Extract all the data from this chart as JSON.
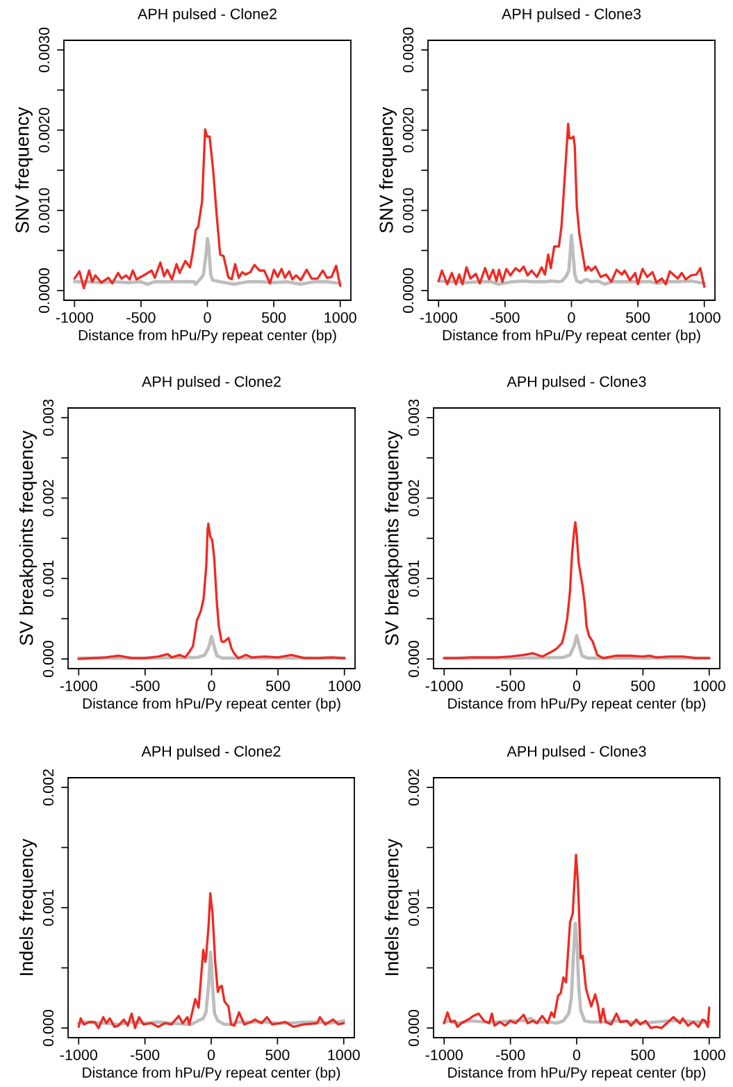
{
  "chart_data": [
    {
      "type": "line",
      "title": "APH pulsed - Clone2",
      "xlabel": "Distance from hPu/Py repeat center (bp)",
      "ylabel": "SNV frequency",
      "xlim": [
        -1080,
        1080
      ],
      "xticks": [
        -1000,
        -500,
        0,
        500,
        1000
      ],
      "ylim": [
        -0.00012,
        0.00312
      ],
      "yticks": [
        {
          "value": 0,
          "label": "0.0000"
        },
        {
          "value": 0.0005,
          "label": null
        },
        {
          "value": 0.001,
          "label": "0.0010"
        },
        {
          "value": 0.0015,
          "label": null
        },
        {
          "value": 0.002,
          "label": "0.0020"
        },
        {
          "value": 0.0025,
          "label": null
        },
        {
          "value": 0.003,
          "label": "0.0030"
        }
      ],
      "series": [
        {
          "color": "#bdbdbd",
          "x": [
            -1000,
            -900,
            -800,
            -700,
            -600,
            -500,
            -450,
            -400,
            -300,
            -200,
            -100,
            -90,
            -50,
            -30,
            -10,
            0,
            10,
            25,
            40,
            100,
            200,
            300,
            400,
            500,
            600,
            700,
            800,
            900,
            1000
          ],
          "values": [
            0.00011,
            0.00011,
            0.0001,
            0.00011,
            0.0001,
            0.00011,
            8e-05,
            0.00011,
            0.00011,
            0.00011,
            0.00011,
            8e-05,
            0.00015,
            0.0002,
            0.00045,
            0.00065,
            0.00055,
            0.0002,
            0.00013,
            0.00011,
            8e-05,
            0.00011,
            0.00011,
            0.0001,
            0.00011,
            8e-05,
            0.00011,
            0.00011,
            9e-05
          ]
        },
        {
          "color": "#ee2a24",
          "x": [
            -1000,
            -963,
            -930,
            -890,
            -867,
            -843,
            -798,
            -745,
            -716,
            -672,
            -646,
            -611,
            -585,
            -562,
            -533,
            -480,
            -419,
            -396,
            -354,
            -326,
            -302,
            -267,
            -232,
            -209,
            -166,
            -131,
            -110,
            -87,
            -70,
            -40,
            -17,
            -3,
            17,
            44,
            70,
            96,
            122,
            157,
            183,
            209,
            236,
            262,
            288,
            323,
            354,
            393,
            428,
            471,
            501,
            529,
            558,
            584,
            616,
            640,
            668,
            703,
            747,
            785,
            829,
            869,
            899,
            934,
            969,
            1000
          ],
          "values": [
            0.00015,
            0.00024,
            3e-05,
            0.00025,
            0.00011,
            0.00019,
            0.0001,
            0.00016,
            9e-05,
            0.00022,
            0.00015,
            0.00019,
            0.00014,
            0.00025,
            0.00014,
            0.00019,
            0.00025,
            0.00016,
            0.00035,
            0.00018,
            0.00026,
            0.00014,
            0.00033,
            0.00022,
            0.00037,
            0.00029,
            0.00048,
            0.00076,
            0.00079,
            0.00111,
            0.00201,
            0.00192,
            0.00192,
            0.00149,
            0.00094,
            0.00045,
            0.00043,
            0.00017,
            0.00014,
            0.00033,
            0.00016,
            0.00023,
            0.0002,
            0.00023,
            0.00032,
            0.00025,
            0.00025,
            9e-05,
            0.00026,
            0.00017,
            0.00027,
            0.00016,
            0.00024,
            0.00014,
            0.00019,
            0.00013,
            0.00026,
            0.00015,
            0.00015,
            0.00025,
            0.00016,
            0.00017,
            0.00031,
            6e-05
          ]
        }
      ]
    },
    {
      "type": "line",
      "title": "APH pulsed - Clone3",
      "xlabel": "Distance from hPu/Py repeat center (bp)",
      "ylabel": "SNV frequency",
      "xlim": [
        -1080,
        1080
      ],
      "xticks": [
        -1000,
        -500,
        0,
        500,
        1000
      ],
      "ylim": [
        -0.00012,
        0.00312
      ],
      "yticks": [
        {
          "value": 0,
          "label": "0.0000"
        },
        {
          "value": 0.0005,
          "label": null
        },
        {
          "value": 0.001,
          "label": "0.0010"
        },
        {
          "value": 0.0015,
          "label": null
        },
        {
          "value": 0.002,
          "label": "0.0020"
        },
        {
          "value": 0.0025,
          "label": null
        },
        {
          "value": 0.003,
          "label": "0.0030"
        }
      ],
      "series": [
        {
          "color": "#bdbdbd",
          "x": [
            -1000,
            -900,
            -800,
            -700,
            -600,
            -550,
            -450,
            -350,
            -300,
            -200,
            -150,
            -100,
            -70,
            -40,
            -20,
            -8,
            0,
            10,
            25,
            40,
            70,
            110,
            150,
            200,
            250,
            300,
            400,
            500,
            600,
            650,
            700,
            800,
            900,
            1000
          ],
          "values": [
            0.00012,
            0.00011,
            0.0001,
            0.00011,
            0.00011,
            8e-05,
            0.00011,
            0.00012,
            0.00011,
            0.00011,
            0.00012,
            0.00011,
            0.00012,
            0.00018,
            0.00025,
            0.0005,
            0.00069,
            0.0005,
            0.0002,
            0.00012,
            0.0001,
            0.00014,
            0.00011,
            0.00012,
            8e-05,
            0.00011,
            0.00011,
            0.00011,
            0.00011,
            9e-05,
            0.00011,
            0.00011,
            0.00012,
            9e-05
          ]
        },
        {
          "color": "#ee2a24",
          "x": [
            -1000,
            -975,
            -935,
            -900,
            -870,
            -845,
            -820,
            -790,
            -760,
            -720,
            -690,
            -650,
            -620,
            -590,
            -565,
            -545,
            -520,
            -490,
            -460,
            -420,
            -390,
            -360,
            -330,
            -300,
            -260,
            -225,
            -200,
            -175,
            -155,
            -130,
            -95,
            -75,
            -55,
            -25,
            -15,
            0,
            15,
            25,
            40,
            60,
            80,
            105,
            125,
            150,
            180,
            220,
            260,
            300,
            340,
            380,
            400,
            440,
            480,
            500,
            535,
            570,
            610,
            640,
            680,
            710,
            740,
            800,
            830,
            860,
            900,
            940,
            970,
            1000
          ],
          "values": [
            0.00012,
            0.00025,
            8e-05,
            0.00022,
            8e-05,
            0.0002,
            8e-05,
            0.00029,
            0.00015,
            0.00021,
            9e-05,
            0.00028,
            0.00014,
            0.00026,
            0.00012,
            0.00026,
            0.00011,
            0.00027,
            0.00019,
            0.00028,
            0.00024,
            0.0003,
            0.00019,
            0.00025,
            0.00017,
            0.00029,
            0.0002,
            0.00045,
            0.00028,
            0.00055,
            0.00055,
            0.0008,
            0.0013,
            0.00208,
            0.0019,
            0.0019,
            0.00192,
            0.0018,
            0.00105,
            0.0007,
            0.0005,
            0.00025,
            0.0003,
            0.00025,
            0.0003,
            0.00017,
            0.0002,
            0.00011,
            0.00026,
            0.0002,
            0.00025,
            0.00013,
            0.00022,
            8e-05,
            0.00027,
            0.00017,
            0.00023,
            0.0001,
            0.00015,
            8e-05,
            0.00024,
            0.00015,
            0.00022,
            0.00014,
            0.00019,
            0.0002,
            0.00028,
            5e-05
          ]
        }
      ]
    },
    {
      "type": "line",
      "title": "APH pulsed - Clone2",
      "xlabel": "Distance from hPu/Py repeat center (bp)",
      "ylabel": "SV breakpoints frequency",
      "xlim": [
        -1080,
        1080
      ],
      "xticks": [
        -1000,
        -500,
        0,
        500,
        1000
      ],
      "ylim": [
        -0.00012,
        0.00312
      ],
      "yticks": [
        {
          "value": 0,
          "label": "0.000"
        },
        {
          "value": 0.0005,
          "label": null
        },
        {
          "value": 0.001,
          "label": "0.001"
        },
        {
          "value": 0.0015,
          "label": null
        },
        {
          "value": 0.002,
          "label": "0.002"
        },
        {
          "value": 0.0025,
          "label": null
        },
        {
          "value": 0.003,
          "label": "0.003"
        }
      ],
      "series": [
        {
          "color": "#bdbdbd",
          "x": [
            -1000,
            -500,
            -100,
            -50,
            -20,
            0,
            20,
            40,
            80,
            500,
            1000
          ],
          "values": [
            1e-05,
            1e-05,
            2e-05,
            5e-05,
            0.00015,
            0.00028,
            0.00015,
            4e-05,
            1e-05,
            1e-05,
            1e-05
          ]
        },
        {
          "color": "#ee2a24",
          "x": [
            -1000,
            -900,
            -800,
            -700,
            -600,
            -500,
            -400,
            -330,
            -300,
            -240,
            -200,
            -170,
            -140,
            -110,
            -80,
            -60,
            -40,
            -30,
            -24,
            -10,
            5,
            20,
            40,
            55,
            75,
            93,
            128,
            150,
            170,
            200,
            260,
            300,
            400,
            500,
            600,
            700,
            800,
            900,
            1000
          ],
          "values": [
            0,
            1e-05,
            2e-05,
            4e-05,
            1e-05,
            1e-05,
            3e-05,
            6e-05,
            2e-05,
            5e-05,
            2e-05,
            8e-05,
            0.00016,
            0.00048,
            0.0006,
            0.00075,
            0.00115,
            0.0016,
            0.00168,
            0.00152,
            0.00148,
            0.00125,
            0.0007,
            0.0004,
            0.00022,
            0.00021,
            0.00026,
            0.00013,
            7e-05,
            1e-05,
            5e-05,
            2e-05,
            3e-05,
            2e-05,
            5e-05,
            1e-05,
            1e-05,
            2e-05,
            1e-05
          ]
        }
      ]
    },
    {
      "type": "line",
      "title": "APH pulsed - Clone3",
      "xlabel": "Distance from hPu/Py repeat center (bp)",
      "ylabel": "SV breakpoints frequency",
      "xlim": [
        -1080,
        1080
      ],
      "xticks": [
        -1000,
        -500,
        0,
        500,
        1000
      ],
      "ylim": [
        -0.00012,
        0.00312
      ],
      "yticks": [
        {
          "value": 0,
          "label": "0.000"
        },
        {
          "value": 0.0005,
          "label": null
        },
        {
          "value": 0.001,
          "label": "0.001"
        },
        {
          "value": 0.0015,
          "label": null
        },
        {
          "value": 0.002,
          "label": "0.002"
        },
        {
          "value": 0.0025,
          "label": null
        },
        {
          "value": 0.003,
          "label": "0.003"
        }
      ],
      "series": [
        {
          "color": "#bdbdbd",
          "x": [
            -1000,
            -500,
            -100,
            -50,
            -20,
            0,
            20,
            40,
            80,
            500,
            1000
          ],
          "values": [
            1e-05,
            1e-05,
            2e-05,
            5e-05,
            0.00016,
            0.00029,
            0.00016,
            4e-05,
            1e-05,
            1e-05,
            1e-05
          ]
        },
        {
          "color": "#ee2a24",
          "x": [
            -1000,
            -900,
            -800,
            -700,
            -600,
            -500,
            -400,
            -330,
            -260,
            -200,
            -150,
            -110,
            -90,
            -70,
            -50,
            -35,
            -20,
            -10,
            0,
            15,
            30,
            45,
            60,
            75,
            95,
            120,
            155,
            200,
            300,
            400,
            500,
            550,
            600,
            700,
            800,
            900,
            1000
          ],
          "values": [
            1e-05,
            1e-05,
            2e-05,
            2e-05,
            2e-05,
            3e-05,
            5e-05,
            7e-05,
            3e-05,
            8e-05,
            0.00013,
            0.0002,
            0.00033,
            0.00052,
            0.00085,
            0.0013,
            0.00158,
            0.0017,
            0.00155,
            0.0012,
            0.00105,
            0.0009,
            0.0007,
            0.0004,
            0.00028,
            0.00022,
            5e-05,
            1e-05,
            4e-05,
            4e-05,
            3e-05,
            4e-05,
            2e-05,
            3e-05,
            3e-05,
            1e-05,
            1e-05
          ]
        }
      ]
    },
    {
      "type": "line",
      "title": "APH pulsed - Clone2",
      "xlabel": "Distance from hPu/Py repeat center (bp)",
      "ylabel": "Indels frequency",
      "xlim": [
        -1080,
        1080
      ],
      "xticks": [
        -1000,
        -500,
        0,
        500,
        1000
      ],
      "ylim": [
        -8e-05,
        0.00208
      ],
      "yticks": [
        {
          "value": 0,
          "label": "0.000"
        },
        {
          "value": 0.0005,
          "label": null
        },
        {
          "value": 0.001,
          "label": "0.001"
        },
        {
          "value": 0.0015,
          "label": null
        },
        {
          "value": 0.002,
          "label": "0.002"
        }
      ],
      "series": [
        {
          "color": "#bdbdbd",
          "x": [
            -1000,
            -950,
            -800,
            -700,
            -600,
            -500,
            -400,
            -300,
            -150,
            -100,
            -60,
            -40,
            -20,
            -5,
            10,
            25,
            50,
            100,
            150,
            200,
            300,
            400,
            500,
            600,
            700,
            800,
            900,
            1000
          ],
          "values": [
            4e-05,
            5e-05,
            4e-05,
            3e-05,
            5e-05,
            4e-05,
            5e-05,
            4e-05,
            3e-05,
            6e-05,
            8e-05,
            0.00013,
            0.00035,
            0.00063,
            0.00035,
            0.00012,
            6e-05,
            3e-05,
            3e-05,
            5e-05,
            5e-05,
            5e-05,
            4e-05,
            4e-05,
            5e-05,
            5e-05,
            4e-05,
            6e-05
          ]
        },
        {
          "color": "#ee2a24",
          "x": [
            -1000,
            -985,
            -960,
            -920,
            -880,
            -850,
            -815,
            -790,
            -765,
            -730,
            -700,
            -660,
            -630,
            -600,
            -575,
            -545,
            -510,
            -450,
            -400,
            -350,
            -300,
            -245,
            -215,
            -180,
            -165,
            -120,
            -95,
            -60,
            -45,
            -38,
            -20,
            -7,
            10,
            30,
            50,
            65,
            80,
            100,
            130,
            150,
            175,
            210,
            250,
            300,
            330,
            380,
            420,
            460,
            520,
            560,
            620,
            700,
            800,
            820,
            860,
            920,
            960,
            1000
          ],
          "values": [
            1e-05,
            8e-05,
            3e-05,
            5e-05,
            5e-05,
            0,
            9e-05,
            4e-05,
            8e-05,
            1e-05,
            2e-05,
            7e-05,
            2e-05,
            0.00012,
            0,
            9e-05,
            3e-05,
            4e-05,
            1e-05,
            4e-05,
            3e-05,
            0.0001,
            4e-05,
            9e-05,
            3e-05,
            0.00024,
            0.00017,
            0.00065,
            0.00055,
            0.0006,
            0.00085,
            0.00112,
            0.00095,
            0.00055,
            0.0003,
            0.00034,
            0.00035,
            0.00022,
            0.00018,
            3e-05,
            2e-05,
            0.00013,
            3e-05,
            5e-05,
            7e-05,
            4e-05,
            9e-05,
            3e-05,
            4e-05,
            5e-05,
            1e-05,
            3e-05,
            4e-05,
            9e-05,
            3e-05,
            7e-05,
            3e-05,
            4e-05
          ]
        }
      ]
    },
    {
      "type": "line",
      "title": "APH pulsed - Clone3",
      "xlabel": "Distance from hPu/Py repeat center (bp)",
      "ylabel": "Indels frequency",
      "xlim": [
        -1080,
        1080
      ],
      "xticks": [
        -1000,
        -500,
        0,
        500,
        1000
      ],
      "ylim": [
        -8e-05,
        0.00208
      ],
      "yticks": [
        {
          "value": 0,
          "label": "0.000"
        },
        {
          "value": 0.0005,
          "label": null
        },
        {
          "value": 0.001,
          "label": "0.001"
        },
        {
          "value": 0.0015,
          "label": null
        },
        {
          "value": 0.002,
          "label": "0.002"
        }
      ],
      "series": [
        {
          "color": "#bdbdbd",
          "x": [
            -1000,
            -950,
            -900,
            -800,
            -700,
            -600,
            -500,
            -400,
            -350,
            -300,
            -200,
            -150,
            -100,
            -60,
            -40,
            -25,
            -10,
            5,
            15,
            30,
            60,
            100,
            200,
            300,
            400,
            500,
            600,
            700,
            800,
            900,
            1000
          ],
          "values": [
            5e-05,
            6e-05,
            4e-05,
            6e-05,
            5e-05,
            5e-05,
            6e-05,
            6e-05,
            8e-05,
            5e-05,
            5e-05,
            4e-05,
            6e-05,
            0.00012,
            0.00025,
            0.0006,
            0.00087,
            0.00065,
            0.00035,
            0.00015,
            6e-05,
            5e-05,
            5e-05,
            6e-05,
            5e-05,
            4e-05,
            5e-05,
            6e-05,
            6e-05,
            5e-05,
            5e-05
          ]
        },
        {
          "color": "#ee2a24",
          "x": [
            -1000,
            -975,
            -950,
            -920,
            -900,
            -870,
            -820,
            -780,
            -740,
            -700,
            -660,
            -640,
            -620,
            -580,
            -540,
            -500,
            -460,
            -400,
            -370,
            -330,
            -300,
            -260,
            -220,
            -190,
            -170,
            -140,
            -120,
            -100,
            -80,
            -50,
            -30,
            -5,
            10,
            30,
            45,
            70,
            90,
            110,
            140,
            160,
            180,
            200,
            220,
            260,
            300,
            330,
            380,
            410,
            450,
            480,
            520,
            560,
            600,
            640,
            700,
            730,
            780,
            800,
            840,
            880,
            920,
            950,
            970,
            990,
            1000
          ],
          "values": [
            4e-05,
            0.00013,
            5e-05,
            6e-05,
            1e-05,
            4e-05,
            7e-05,
            0.0001,
            0.00012,
            6e-05,
            4e-05,
            0.00012,
            2e-05,
            5e-05,
            2e-05,
            6e-05,
            4e-05,
            0.00011,
            4e-05,
            6e-05,
            4e-05,
            0.0001,
            4e-05,
            0.00013,
            9e-05,
            0.00027,
            0.00029,
            0.00042,
            0.00038,
            0.00088,
            0.00095,
            0.00144,
            0.0012,
            0.00058,
            0.0006,
            0.00033,
            0.00025,
            0.00018,
            0.00028,
            0.00019,
            5e-05,
            0.00016,
            5e-05,
            3e-05,
            0.00012,
            5e-05,
            6e-05,
            2e-05,
            7e-05,
            3e-05,
            6e-05,
            0,
            1e-05,
            0,
            6e-05,
            9e-05,
            4e-05,
            8e-05,
            2e-05,
            5e-05,
            1e-05,
            7e-05,
            6e-05,
            1e-05,
            0.00017
          ]
        }
      ]
    }
  ]
}
